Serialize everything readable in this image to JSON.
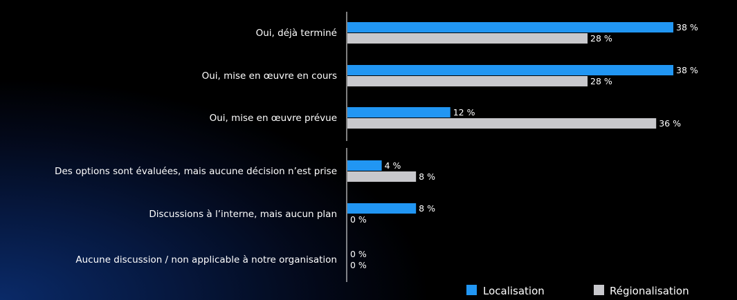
{
  "chart_data": {
    "type": "bar",
    "orientation": "horizontal",
    "categories": [
      "Oui, déjà terminé",
      "Oui, mise en œuvre en cours",
      "Oui, mise en œuvre prévue",
      "Des options sont évaluées, mais aucune décision n’est prise",
      "Discussions à l’interne, mais aucun plan",
      "Aucune discussion / non applicable à notre organisation"
    ],
    "series": [
      {
        "name": "Localisation",
        "color": "#2196f3",
        "values": [
          38,
          38,
          12,
          4,
          8,
          0
        ],
        "labels": [
          "38 %",
          "38 %",
          "12 %",
          "4 %",
          "8 %",
          "0 %"
        ]
      },
      {
        "name": "Régionalisation",
        "color": "#c8c8cc",
        "values": [
          28,
          28,
          36,
          8,
          0,
          0
        ],
        "labels": [
          "28 %",
          "28 %",
          "36 %",
          "8 %",
          "0 %",
          "0 %"
        ]
      }
    ],
    "xlim": [
      0,
      38
    ],
    "value_unit": "%",
    "grid": false,
    "legend_position": "bottom-right",
    "axis_break_after_category": 2
  }
}
